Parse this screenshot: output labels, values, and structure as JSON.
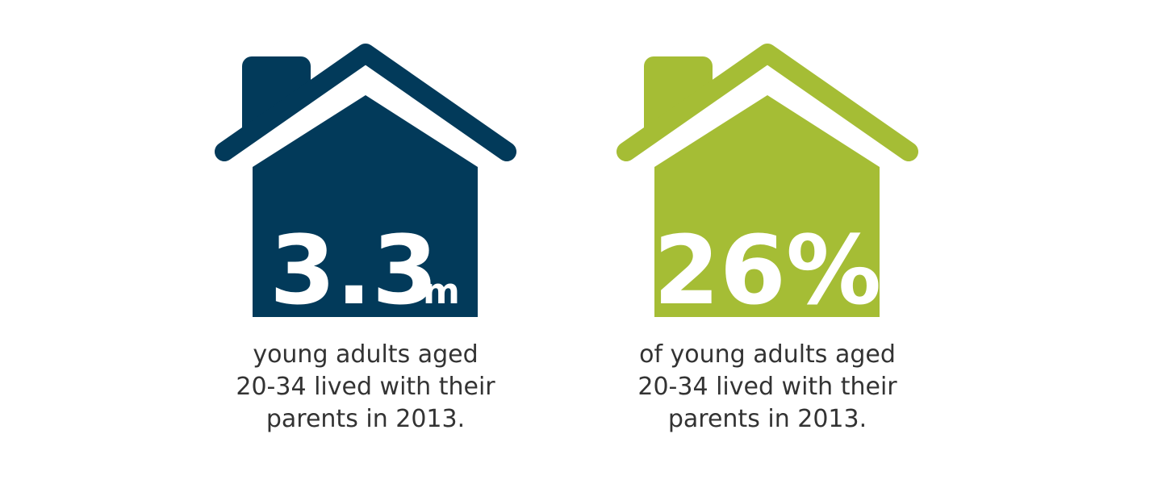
{
  "cards": [
    {
      "stat": "3.3",
      "unit": "m",
      "caption": [
        "young adults aged",
        "20-34 lived with their",
        "parents in 2013."
      ]
    },
    {
      "stat": "26%",
      "caption": [
        "of young adults aged",
        "20-34 lived with their",
        "parents in 2013."
      ]
    }
  ]
}
